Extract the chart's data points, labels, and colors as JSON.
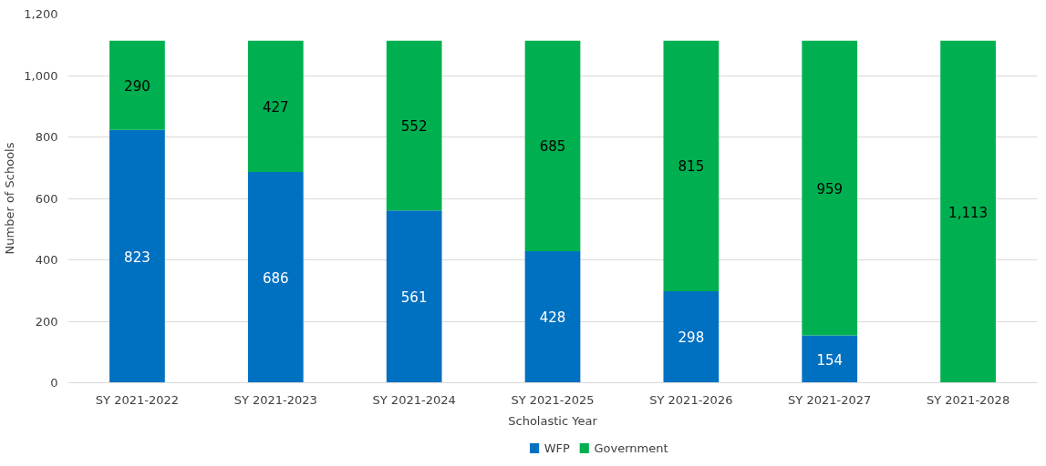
{
  "chart_data": {
    "type": "bar",
    "stacked": true,
    "xlabel": "Scholastic Year",
    "ylabel": "Number of Schools",
    "categories": [
      "SY 2021-2022",
      "SY 2021-2023",
      "SY 2021-2024",
      "SY 2021-2025",
      "SY 2021-2026",
      "SY 2021-2027",
      "SY 2021-2028"
    ],
    "series": [
      {
        "name": "WFP",
        "color": "#0070c0",
        "values": [
          823,
          686,
          561,
          428,
          298,
          154,
          0
        ],
        "value_labels": [
          "823",
          "686",
          "561",
          "428",
          "298",
          "154",
          null
        ]
      },
      {
        "name": "Government",
        "color": "#00b050",
        "values": [
          290,
          427,
          552,
          685,
          815,
          959,
          1113
        ],
        "value_labels": [
          "290",
          "427",
          "552",
          "685",
          "815",
          "959",
          "1,113"
        ]
      }
    ],
    "ylim": [
      0,
      1200
    ],
    "yticks": [
      {
        "value": 0,
        "label": "0"
      },
      {
        "value": 200,
        "label": "200"
      },
      {
        "value": 400,
        "label": "400"
      },
      {
        "value": 600,
        "label": "600"
      },
      {
        "value": 800,
        "label": "800"
      },
      {
        "value": 1000,
        "label": "1,000"
      },
      {
        "value": 1200,
        "label": "1,200"
      }
    ],
    "grid": "y",
    "legend": "bottom"
  }
}
